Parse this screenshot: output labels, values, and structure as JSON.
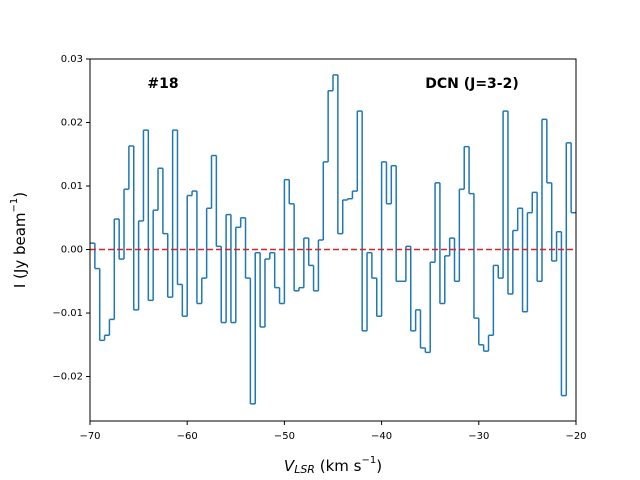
{
  "chart_data": {
    "type": "step",
    "annotations": [
      "#18",
      "DCN (J=3-2)"
    ],
    "xlabel": {
      "main": "V",
      "sub": "LSR",
      "rest": " (km s",
      "sup": "−1",
      "end": ")"
    },
    "ylabel": {
      "main": "I (Jy beam",
      "sup": "−1",
      "end": ")"
    },
    "x": [
      -70,
      -69.5,
      -69,
      -68.5,
      -68,
      -67.5,
      -67,
      -66.5,
      -66,
      -65.5,
      -65,
      -64.5,
      -64,
      -63.5,
      -63,
      -62.5,
      -62,
      -61.5,
      -61,
      -60.5,
      -60,
      -59.5,
      -59,
      -58.5,
      -58,
      -57.5,
      -57,
      -56.5,
      -56,
      -55.5,
      -55,
      -54.5,
      -54,
      -53.5,
      -53,
      -52.5,
      -52,
      -51.5,
      -51,
      -50.5,
      -50,
      -49.5,
      -49,
      -48.5,
      -48,
      -47.5,
      -47,
      -46.5,
      -46,
      -45.5,
      -45,
      -44.5,
      -44,
      -43.5,
      -43,
      -42.5,
      -42,
      -41.5,
      -41,
      -40.5,
      -40,
      -39.5,
      -39,
      -38.5,
      -38,
      -37.5,
      -37,
      -36.5,
      -36,
      -35.5,
      -35,
      -34.5,
      -34,
      -33.5,
      -33,
      -32.5,
      -32,
      -31.5,
      -31,
      -30.5,
      -30,
      -29.5,
      -29,
      -28.5,
      -28,
      -27.5,
      -27,
      -26.5,
      -26,
      -25.5,
      -25,
      -24.5,
      -24,
      -23.5,
      -23,
      -22.5,
      -22,
      -21.5,
      -21,
      -20.5
    ],
    "series": [
      {
        "color": "#1f77b4",
        "values": [
          0.001,
          -0.003,
          -0.0143,
          -0.0135,
          -0.011,
          0.0048,
          -0.0015,
          0.0095,
          0.0163,
          -0.0095,
          0.0045,
          0.0188,
          -0.008,
          0.0062,
          0.0128,
          0.0025,
          -0.0075,
          0.0188,
          -0.0055,
          -0.0105,
          0.0085,
          0.0092,
          -0.0085,
          -0.0045,
          0.0065,
          0.0148,
          0.0005,
          -0.0115,
          0.0055,
          -0.0115,
          0.0035,
          0.005,
          -0.0045,
          -0.0243,
          -0.0005,
          -0.0122,
          -0.0015,
          -0.0005,
          -0.006,
          -0.0085,
          0.011,
          0.0072,
          -0.0065,
          -0.006,
          0.0018,
          -0.0025,
          -0.0065,
          0.0015,
          0.0138,
          0.025,
          0.0275,
          0.0025,
          0.0078,
          0.008,
          0.0092,
          0.0218,
          -0.0128,
          -0.0005,
          -0.0045,
          -0.0105,
          0.0138,
          0.0072,
          0.0132,
          -0.005,
          -0.005,
          0.0005,
          -0.0128,
          -0.0095,
          -0.0155,
          -0.0162,
          -0.002,
          0.0105,
          -0.0085,
          -0.001,
          0.0018,
          -0.005,
          0.0095,
          0.0162,
          0.0088,
          -0.0108,
          -0.015,
          -0.016,
          -0.0135,
          -0.0025,
          -0.0045,
          0.0218,
          -0.007,
          0.003,
          0.0065,
          -0.0098,
          0.0058,
          0.009,
          -0.005,
          0.0205,
          0.0105,
          -0.0018,
          0.0028,
          -0.023,
          0.0168,
          0.0058
        ]
      }
    ],
    "hline": {
      "value": 0,
      "color": "#d62728"
    },
    "xlim": [
      -70,
      -20
    ],
    "xticks": [
      {
        "value": -70,
        "label": "−70"
      },
      {
        "value": -60,
        "label": "−60"
      },
      {
        "value": -50,
        "label": "−50"
      },
      {
        "value": -40,
        "label": "−40"
      },
      {
        "value": -30,
        "label": "−30"
      },
      {
        "value": -20,
        "label": "−20"
      }
    ],
    "ylim": [
      -0.027,
      0.03
    ],
    "yticks": [
      {
        "value": -0.02,
        "label": "−0.02"
      },
      {
        "value": -0.01,
        "label": "−0.01"
      },
      {
        "value": 0,
        "label": "0.00"
      },
      0.01,
      0.02,
      0.03
    ]
  }
}
